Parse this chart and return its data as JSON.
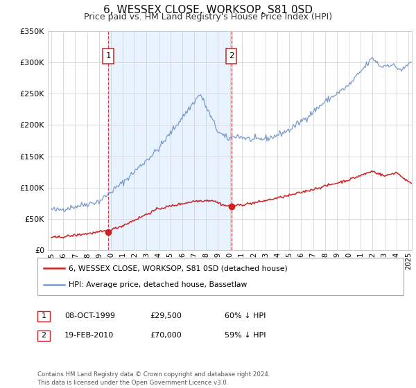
{
  "title": "6, WESSEX CLOSE, WORKSOP, S81 0SD",
  "subtitle": "Price paid vs. HM Land Registry's House Price Index (HPI)",
  "title_fontsize": 11,
  "subtitle_fontsize": 9,
  "background_color": "#ffffff",
  "plot_bg_color": "#ffffff",
  "grid_color": "#cccccc",
  "hpi_color": "#7799cc",
  "hpi_fill_color": "#ddeeff",
  "price_color": "#cc2222",
  "ylim": [
    0,
    350000
  ],
  "xlim_start": 1994.7,
  "xlim_end": 2025.3,
  "sale1_x": 1999.77,
  "sale1_y": 29500,
  "sale1_label": "1",
  "sale2_x": 2010.12,
  "sale2_y": 70000,
  "sale2_label": "2",
  "legend_label_price": "6, WESSEX CLOSE, WORKSOP, S81 0SD (detached house)",
  "legend_label_hpi": "HPI: Average price, detached house, Bassetlaw",
  "table_data": [
    [
      "1",
      "08-OCT-1999",
      "£29,500",
      "60% ↓ HPI"
    ],
    [
      "2",
      "19-FEB-2010",
      "£70,000",
      "59% ↓ HPI"
    ]
  ],
  "footnote": "Contains HM Land Registry data © Crown copyright and database right 2024.\nThis data is licensed under the Open Government Licence v3.0.",
  "shaded_region_x1": 1999.77,
  "shaded_region_x2": 2010.12,
  "yticks": [
    0,
    50000,
    100000,
    150000,
    200000,
    250000,
    300000,
    350000
  ],
  "ylabels": [
    "£0",
    "£50K",
    "£100K",
    "£150K",
    "£200K",
    "£250K",
    "£300K",
    "£350K"
  ]
}
